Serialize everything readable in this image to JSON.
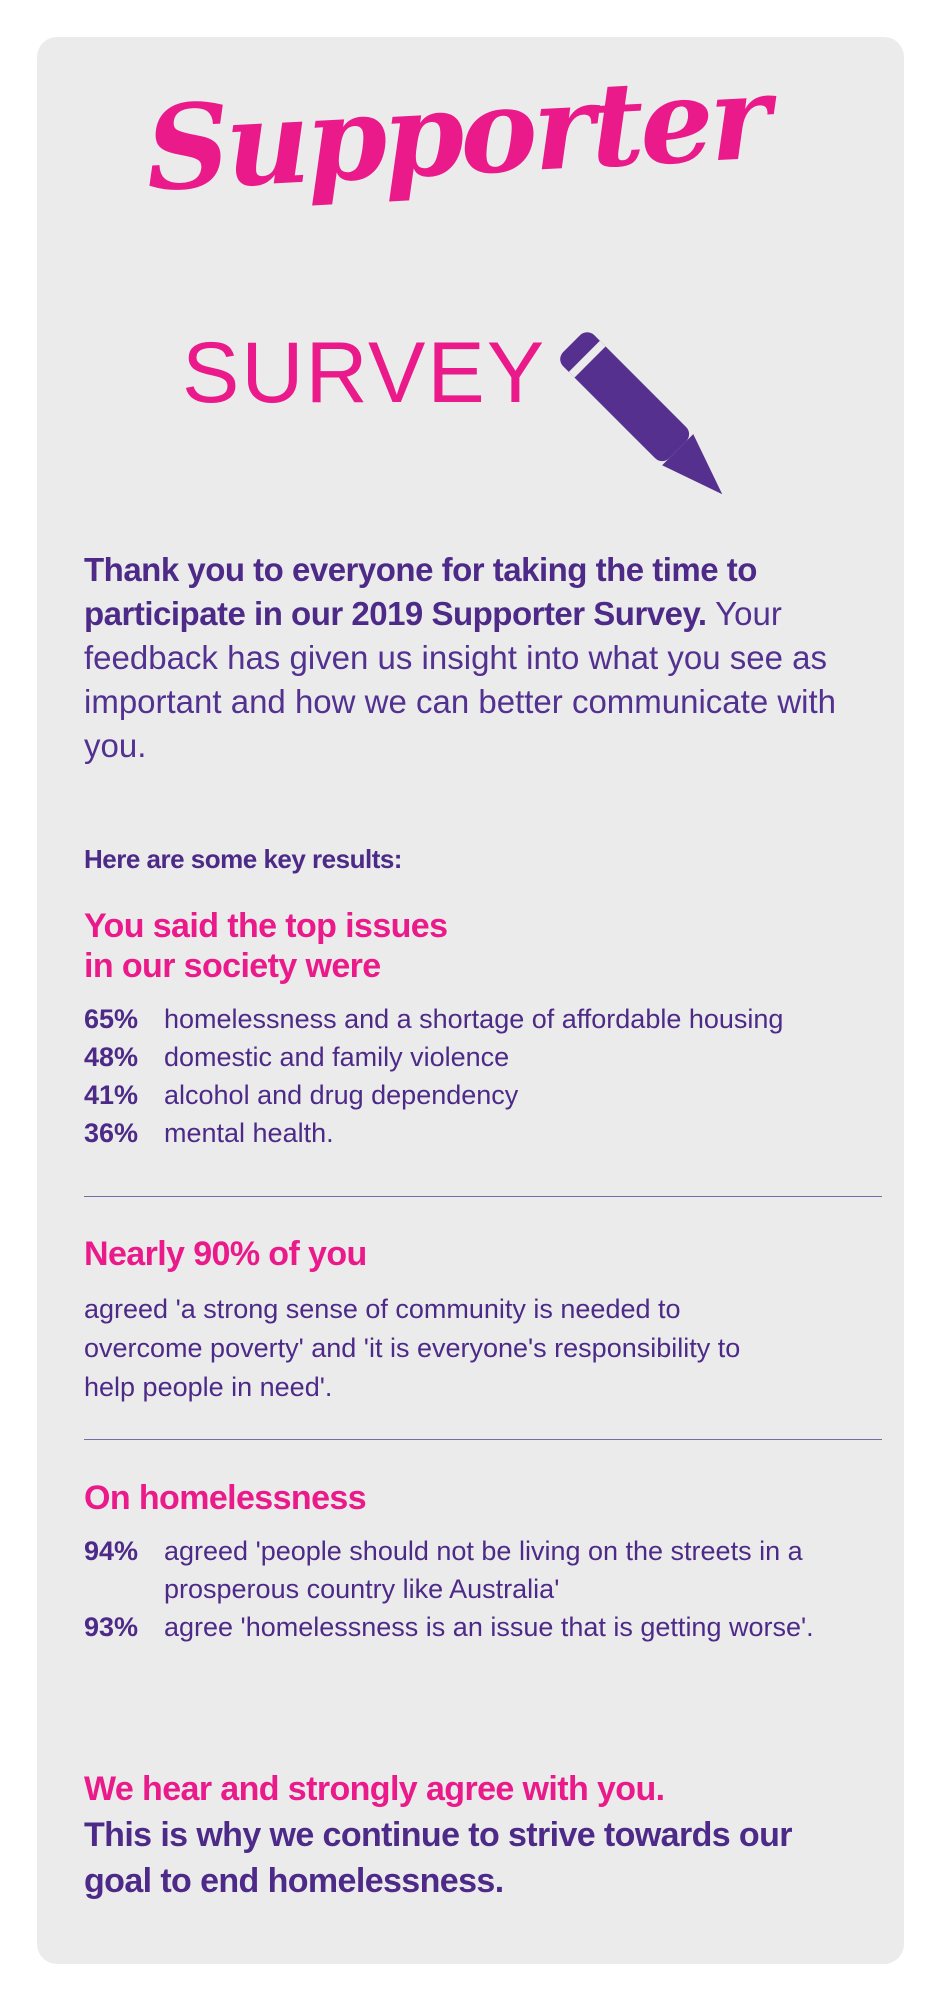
{
  "header": {
    "title_script": "Supporter",
    "title_caps": "SURVEY"
  },
  "intro": {
    "bold": "Thank you to everyone for taking the time to participate in our 2019 Supporter Survey.",
    "body": "Your feedback has given us insight into what you see as important and how we can better communicate with you."
  },
  "key_results_label": "Here are some key results:",
  "issues": {
    "heading_line1": "You said the top issues",
    "heading_line2": "in our society were",
    "items": [
      {
        "pct": "65%",
        "text": "homelessness and a shortage of affordable housing"
      },
      {
        "pct": "48%",
        "text": "domestic and family violence"
      },
      {
        "pct": "41%",
        "text": "alcohol and drug dependency"
      },
      {
        "pct": "36%",
        "text": "mental health."
      }
    ]
  },
  "community": {
    "heading": "Nearly 90% of you",
    "text": "agreed 'a strong sense of community is needed to overcome poverty' and 'it is everyone's responsibility to help people in need'."
  },
  "homelessness": {
    "heading": "On homelessness",
    "items": [
      {
        "pct": "94%",
        "text": "agreed 'people should not be living on the streets in a prosperous country like Australia'"
      },
      {
        "pct": "93%",
        "text": "agree 'homelessness is an issue that is getting worse'."
      }
    ]
  },
  "closing": {
    "pink": "We hear and strongly agree with you.",
    "purple": "This is why we continue to strive towards our goal to end homelessness."
  },
  "colors": {
    "pink": "#ea1a8b",
    "purple": "#4d2a88",
    "card_background": "#ebebeb"
  },
  "icons": [
    "pencil-icon"
  ]
}
